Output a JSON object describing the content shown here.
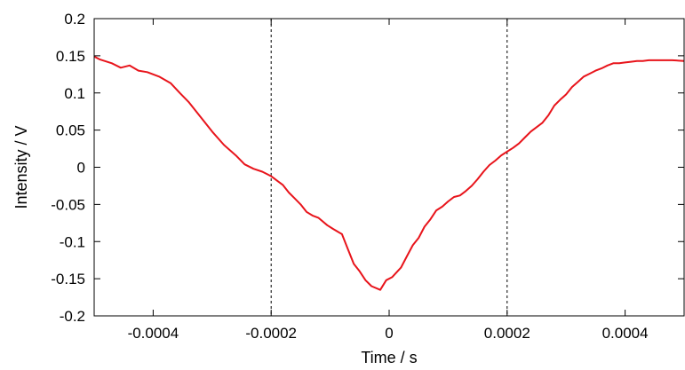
{
  "chart_data": {
    "type": "line",
    "title": "",
    "xlabel": "Time / s",
    "ylabel": "Intensity / V",
    "xlim": [
      -0.0005,
      0.0005
    ],
    "ylim": [
      -0.2,
      0.2
    ],
    "x_ticks": [
      -0.0004,
      -0.0002,
      0,
      0.0002,
      0.0004
    ],
    "x_tick_labels": [
      "-0.0004",
      "-0.0002",
      "0",
      "0.0002",
      "0.0004"
    ],
    "y_ticks": [
      -0.2,
      -0.15,
      -0.1,
      -0.05,
      0,
      0.05,
      0.1,
      0.15,
      0.2
    ],
    "y_tick_labels": [
      "-0.2",
      "-0.15",
      "-0.1",
      "-0.05",
      "0",
      "0.05",
      "0.1",
      "0.15",
      "0.2"
    ],
    "grid": false,
    "vertical_markers": [
      -0.0002,
      0.0002
    ],
    "series": [
      {
        "color": "#e8141b",
        "x": [
          -0.0005,
          -0.00049,
          -0.00047,
          -0.000455,
          -0.00044,
          -0.000425,
          -0.00041,
          -0.00039,
          -0.00037,
          -0.000355,
          -0.00034,
          -0.00032,
          -0.0003,
          -0.00028,
          -0.00026,
          -0.000245,
          -0.00023,
          -0.000215,
          -0.000205,
          -0.0002,
          -0.00019,
          -0.00018,
          -0.00017,
          -0.00016,
          -0.00015,
          -0.00014,
          -0.00013,
          -0.00012,
          -0.000105,
          -9.5e-05,
          -8e-05,
          -7e-05,
          -6e-05,
          -5e-05,
          -4e-05,
          -3e-05,
          -1.5e-05,
          -5e-06,
          5e-06,
          2e-05,
          3e-05,
          4e-05,
          5e-05,
          6e-05,
          7e-05,
          8e-05,
          9e-05,
          0.0001,
          0.00011,
          0.00012,
          0.00013,
          0.00014,
          0.00015,
          0.00016,
          0.00017,
          0.00018,
          0.00019,
          0.0002,
          0.00021,
          0.00022,
          0.00023,
          0.00024,
          0.00025,
          0.00026,
          0.00027,
          0.00028,
          0.00029,
          0.0003,
          0.00031,
          0.00032,
          0.00033,
          0.00034,
          0.00035,
          0.00036,
          0.00037,
          0.00038,
          0.00039,
          0.0004,
          0.00041,
          0.00042,
          0.00043,
          0.00044,
          0.00045,
          0.00046,
          0.00048,
          0.0005
        ],
        "y": [
          0.149,
          0.145,
          0.14,
          0.134,
          0.137,
          0.13,
          0.128,
          0.122,
          0.113,
          0.1,
          0.088,
          0.068,
          0.048,
          0.03,
          0.016,
          0.004,
          -0.002,
          -0.006,
          -0.01,
          -0.012,
          -0.018,
          -0.024,
          -0.034,
          -0.042,
          -0.05,
          -0.06,
          -0.065,
          -0.068,
          -0.078,
          -0.083,
          -0.09,
          -0.11,
          -0.13,
          -0.14,
          -0.152,
          -0.16,
          -0.165,
          -0.152,
          -0.148,
          -0.135,
          -0.12,
          -0.105,
          -0.095,
          -0.08,
          -0.07,
          -0.058,
          -0.053,
          -0.046,
          -0.04,
          -0.038,
          -0.032,
          -0.025,
          -0.016,
          -0.006,
          0.003,
          0.009,
          0.016,
          0.021,
          0.026,
          0.032,
          0.04,
          0.048,
          0.054,
          0.06,
          0.07,
          0.083,
          0.091,
          0.098,
          0.108,
          0.115,
          0.122,
          0.126,
          0.13,
          0.133,
          0.137,
          0.14,
          0.14,
          0.141,
          0.142,
          0.143,
          0.143,
          0.144,
          0.144,
          0.144,
          0.144,
          0.143
        ]
      }
    ]
  }
}
